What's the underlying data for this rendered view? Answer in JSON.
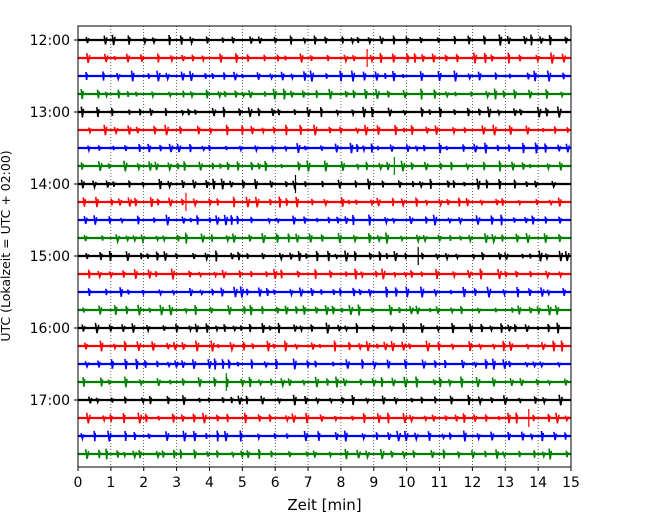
{
  "chart_data": {
    "type": "line",
    "title": "",
    "xlabel": "Zeit  [min]",
    "ylabel": "UTC (Lokalzeit = UTC + 02:00)",
    "xlim": [
      0,
      15
    ],
    "x_ticks": [
      "0",
      "1",
      "2",
      "3",
      "4",
      "5",
      "6",
      "7",
      "8",
      "9",
      "10",
      "11",
      "12",
      "13",
      "14",
      "15"
    ],
    "y_tick_labels": [
      "12:00",
      "13:00",
      "14:00",
      "15:00",
      "16:00",
      "17:00"
    ],
    "grid": "vertical dotted",
    "trace_interval_minutes": 15,
    "colors": [
      "#000000",
      "#ff0000",
      "#0000ff",
      "#008000"
    ],
    "series": [
      {
        "start": "12:00",
        "color": "#000000"
      },
      {
        "start": "12:15",
        "color": "#ff0000"
      },
      {
        "start": "12:30",
        "color": "#0000ff"
      },
      {
        "start": "12:45",
        "color": "#008000"
      },
      {
        "start": "13:00",
        "color": "#000000"
      },
      {
        "start": "13:15",
        "color": "#ff0000"
      },
      {
        "start": "13:30",
        "color": "#0000ff"
      },
      {
        "start": "13:45",
        "color": "#008000"
      },
      {
        "start": "14:00",
        "color": "#000000"
      },
      {
        "start": "14:15",
        "color": "#ff0000"
      },
      {
        "start": "14:30",
        "color": "#0000ff"
      },
      {
        "start": "14:45",
        "color": "#008000"
      },
      {
        "start": "15:00",
        "color": "#000000"
      },
      {
        "start": "15:15",
        "color": "#ff0000"
      },
      {
        "start": "15:30",
        "color": "#0000ff"
      },
      {
        "start": "15:45",
        "color": "#008000"
      },
      {
        "start": "16:00",
        "color": "#000000"
      },
      {
        "start": "16:15",
        "color": "#ff0000"
      },
      {
        "start": "16:30",
        "color": "#0000ff"
      },
      {
        "start": "16:45",
        "color": "#008000"
      },
      {
        "start": "17:00",
        "color": "#000000"
      },
      {
        "start": "17:15",
        "color": "#ff0000"
      },
      {
        "start": "17:30",
        "color": "#0000ff"
      },
      {
        "start": "17:45",
        "color": "#008000"
      }
    ]
  }
}
